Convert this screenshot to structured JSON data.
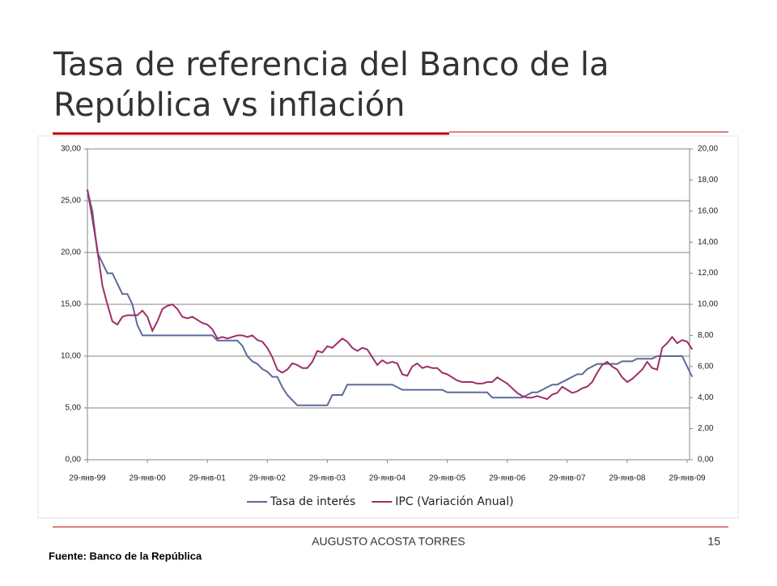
{
  "slide": {
    "title_lines": [
      "Tasa de referencia del Banco de la",
      "República vs inflación"
    ],
    "source": "Fuente: Banco de la República",
    "author": "AUGUSTO ACOSTA TORRES",
    "page": "15"
  },
  "chart_data": {
    "type": "line",
    "categories": [
      "29-янв-99",
      null,
      null,
      null,
      null,
      null,
      null,
      null,
      null,
      null,
      null,
      null,
      "29-янв-00",
      null,
      null,
      null,
      null,
      null,
      null,
      null,
      null,
      null,
      null,
      null,
      "29-янв-01",
      null,
      null,
      null,
      null,
      null,
      null,
      null,
      null,
      null,
      null,
      null,
      "29-янв-02",
      null,
      null,
      null,
      null,
      null,
      null,
      null,
      null,
      null,
      null,
      null,
      "29-янв-03",
      null,
      null,
      null,
      null,
      null,
      null,
      null,
      null,
      null,
      null,
      null,
      "29-янв-04",
      null,
      null,
      null,
      null,
      null,
      null,
      null,
      null,
      null,
      null,
      null,
      "29-янв-05",
      null,
      null,
      null,
      null,
      null,
      null,
      null,
      null,
      null,
      null,
      null,
      "29-янв-06",
      null,
      null,
      null,
      null,
      null,
      null,
      null,
      null,
      null,
      null,
      null,
      "29-янв-07",
      null,
      null,
      null,
      null,
      null,
      null,
      null,
      null,
      null,
      null,
      null,
      "29-янв-08",
      null,
      null,
      null,
      null,
      null,
      null,
      null,
      null,
      null,
      null,
      null,
      "29-янв-09",
      null
    ],
    "series": [
      {
        "name": "Tasa de interés",
        "color": "#5d6a9c",
        "values": [
          26,
          24,
          20,
          19,
          18,
          18,
          17,
          16,
          16,
          15,
          13,
          12,
          12,
          12,
          12,
          12,
          12,
          12,
          12,
          12,
          12,
          12,
          12,
          12,
          12,
          12,
          11.5,
          11.5,
          11.5,
          11.5,
          11.5,
          11,
          10,
          9.5,
          9.25,
          8.75,
          8.5,
          8,
          8,
          7,
          6.25,
          5.75,
          5.25,
          5.25,
          5.25,
          5.25,
          5.25,
          5.25,
          5.25,
          6.25,
          6.25,
          6.25,
          7.25,
          7.25,
          7.25,
          7.25,
          7.25,
          7.25,
          7.25,
          7.25,
          7.25,
          7.25,
          7,
          6.75,
          6.75,
          6.75,
          6.75,
          6.75,
          6.75,
          6.75,
          6.75,
          6.75,
          6.5,
          6.5,
          6.5,
          6.5,
          6.5,
          6.5,
          6.5,
          6.5,
          6.5,
          6,
          6,
          6,
          6,
          6,
          6,
          6,
          6.25,
          6.5,
          6.5,
          6.75,
          7,
          7.25,
          7.25,
          7.5,
          7.75,
          8,
          8.25,
          8.25,
          8.75,
          9,
          9.25,
          9.25,
          9.25,
          9.25,
          9.25,
          9.5,
          9.5,
          9.5,
          9.75,
          9.75,
          9.75,
          9.75,
          10,
          10,
          10,
          10,
          10,
          10,
          9,
          8
        ]
      },
      {
        "name": "IPC (Variación Anual)",
        "color": "#9e2f66",
        "axis": "y2",
        "values": [
          17.4,
          15.5,
          13.5,
          11.2,
          10.0,
          8.9,
          8.7,
          9.2,
          9.3,
          9.3,
          9.3,
          9.6,
          9.2,
          8.3,
          8.9,
          9.7,
          9.9,
          10.0,
          9.7,
          9.2,
          9.1,
          9.2,
          9.0,
          8.8,
          8.7,
          8.4,
          7.8,
          7.9,
          7.8,
          7.9,
          8.0,
          8.0,
          7.9,
          8.0,
          7.7,
          7.6,
          7.2,
          6.6,
          5.8,
          5.6,
          5.8,
          6.2,
          6.1,
          5.9,
          5.9,
          6.3,
          7.0,
          6.9,
          7.3,
          7.2,
          7.5,
          7.8,
          7.6,
          7.2,
          7.0,
          7.2,
          7.1,
          6.6,
          6.1,
          6.4,
          6.2,
          6.3,
          6.2,
          5.5,
          5.4,
          6.0,
          6.2,
          5.9,
          6.0,
          5.9,
          5.9,
          5.6,
          5.5,
          5.3,
          5.1,
          5.0,
          5.0,
          5.0,
          4.9,
          4.9,
          5.0,
          5.0,
          5.3,
          5.1,
          4.9,
          4.6,
          4.3,
          4.1,
          4.0,
          4.0,
          4.1,
          4.0,
          3.9,
          4.2,
          4.3,
          4.7,
          4.5,
          4.3,
          4.4,
          4.6,
          4.7,
          5.0,
          5.6,
          6.1,
          6.3,
          6.0,
          5.8,
          5.3,
          5.0,
          5.2,
          5.5,
          5.8,
          6.3,
          5.9,
          5.8,
          7.2,
          7.5,
          7.9,
          7.5,
          7.7,
          7.6,
          7.1
        ]
      }
    ],
    "ylim": [
      0,
      30
    ],
    "yticks": [
      {
        "value": 0,
        "label": "0,00"
      },
      {
        "value": 5,
        "label": "5,00"
      },
      {
        "value": 10,
        "label": "10,00"
      },
      {
        "value": 15,
        "label": "15,00"
      },
      {
        "value": 20,
        "label": "20,00"
      },
      {
        "value": 25,
        "label": "25,00"
      },
      {
        "value": 30,
        "label": "30,00"
      }
    ],
    "y2lim": [
      0,
      20
    ],
    "y2ticks": [
      {
        "value": 0,
        "label": "0,00"
      },
      {
        "value": 2,
        "label": "2,00"
      },
      {
        "value": 4,
        "label": "4,00"
      },
      {
        "value": 6,
        "label": "6,00"
      },
      {
        "value": 8,
        "label": "8,00"
      },
      {
        "value": 10,
        "label": "10,00"
      },
      {
        "value": 12,
        "label": "12,00"
      },
      {
        "value": 14,
        "label": "14,00"
      },
      {
        "value": 16,
        "label": "16,00"
      },
      {
        "value": 18,
        "label": "18,00"
      },
      {
        "value": 20,
        "label": "20,00"
      }
    ],
    "grid": true,
    "legend": "bottom"
  }
}
